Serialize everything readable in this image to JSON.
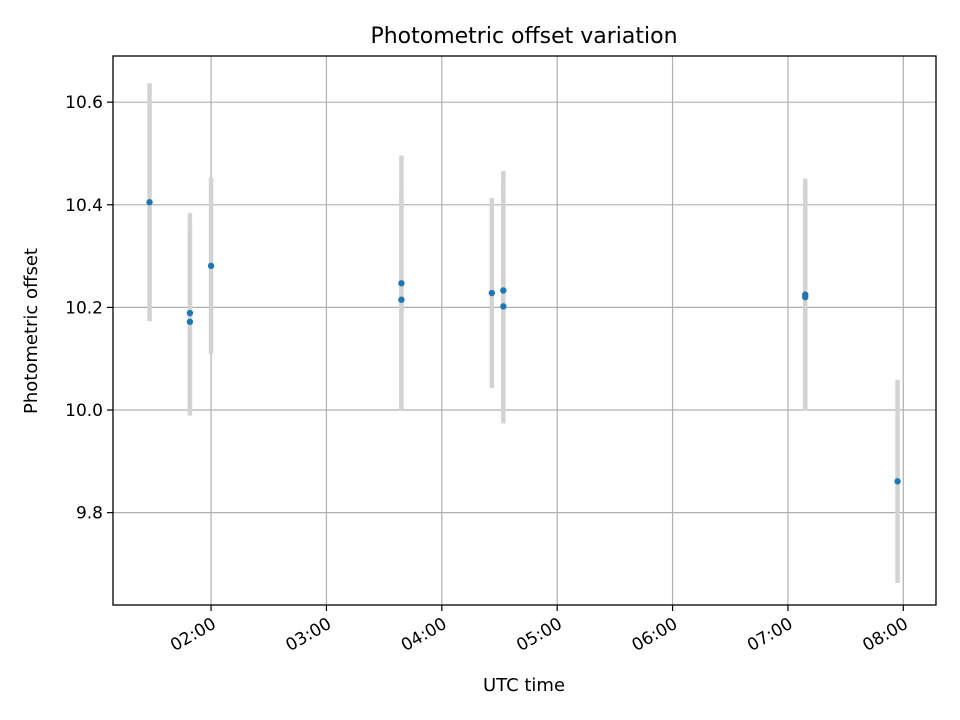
{
  "chart_data": {
    "type": "scatter",
    "title": "Photometric offset variation",
    "xlabel": "UTC time",
    "ylabel": "Photometric offset",
    "x_ticks": [
      "02:00",
      "03:00",
      "04:00",
      "05:00",
      "06:00",
      "07:00",
      "08:00"
    ],
    "y_ticks": [
      "9.8",
      "10.0",
      "10.2",
      "10.4",
      "10.6"
    ],
    "xlim": [
      "01:09",
      "08:17"
    ],
    "ylim": [
      9.62,
      10.69
    ],
    "grid": true,
    "marker_color": "#1f77b4",
    "errorbar_color": "#d3d3d3",
    "points": [
      {
        "t": "01:28",
        "y": 10.405,
        "yerr": 0.232
      },
      {
        "t": "01:49",
        "y": 10.189,
        "yerr": 0.195
      },
      {
        "t": "01:49",
        "y": 10.172,
        "yerr": 0.183
      },
      {
        "t": "02:00",
        "y": 10.281,
        "yerr": 0.172
      },
      {
        "t": "03:39",
        "y": 10.247,
        "yerr": 0.249
      },
      {
        "t": "03:39",
        "y": 10.215,
        "yerr": 0.213
      },
      {
        "t": "04:26",
        "y": 10.228,
        "yerr": 0.185
      },
      {
        "t": "04:32",
        "y": 10.233,
        "yerr": 0.233
      },
      {
        "t": "04:32",
        "y": 10.202,
        "yerr": 0.228
      },
      {
        "t": "07:09",
        "y": 10.225,
        "yerr": 0.226
      },
      {
        "t": "07:09",
        "y": 10.22,
        "yerr": 0.22
      },
      {
        "t": "07:57",
        "y": 9.861,
        "yerr": 0.198
      }
    ]
  }
}
